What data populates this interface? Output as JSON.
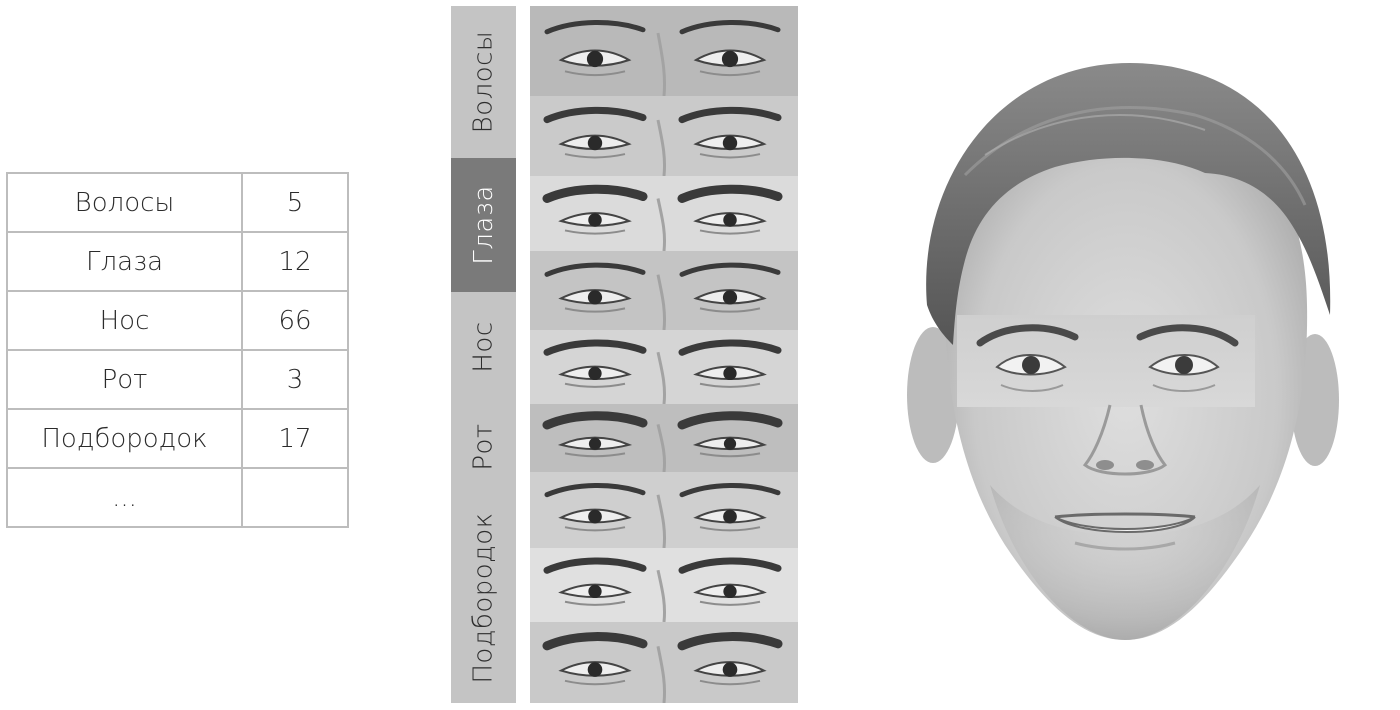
{
  "table": {
    "rows": [
      {
        "label": "Волосы",
        "value": "5"
      },
      {
        "label": "Глаза",
        "value": "12"
      },
      {
        "label": "Нос",
        "value": "66"
      },
      {
        "label": "Рот",
        "value": "3"
      },
      {
        "label": "Подбородок",
        "value": "17"
      },
      {
        "label": "...",
        "value": ""
      }
    ]
  },
  "categories": [
    {
      "label": "Волосы",
      "active": false
    },
    {
      "label": "Глаза",
      "active": true
    },
    {
      "label": "Нос",
      "active": false
    },
    {
      "label": "Рот",
      "active": false
    },
    {
      "label": "Подбородок",
      "active": false
    }
  ],
  "eye_strip_count": 9,
  "colors": {
    "strip": "#c4c4c4",
    "strip_active": "#7a7a7a",
    "border": "#bdbdbd"
  }
}
